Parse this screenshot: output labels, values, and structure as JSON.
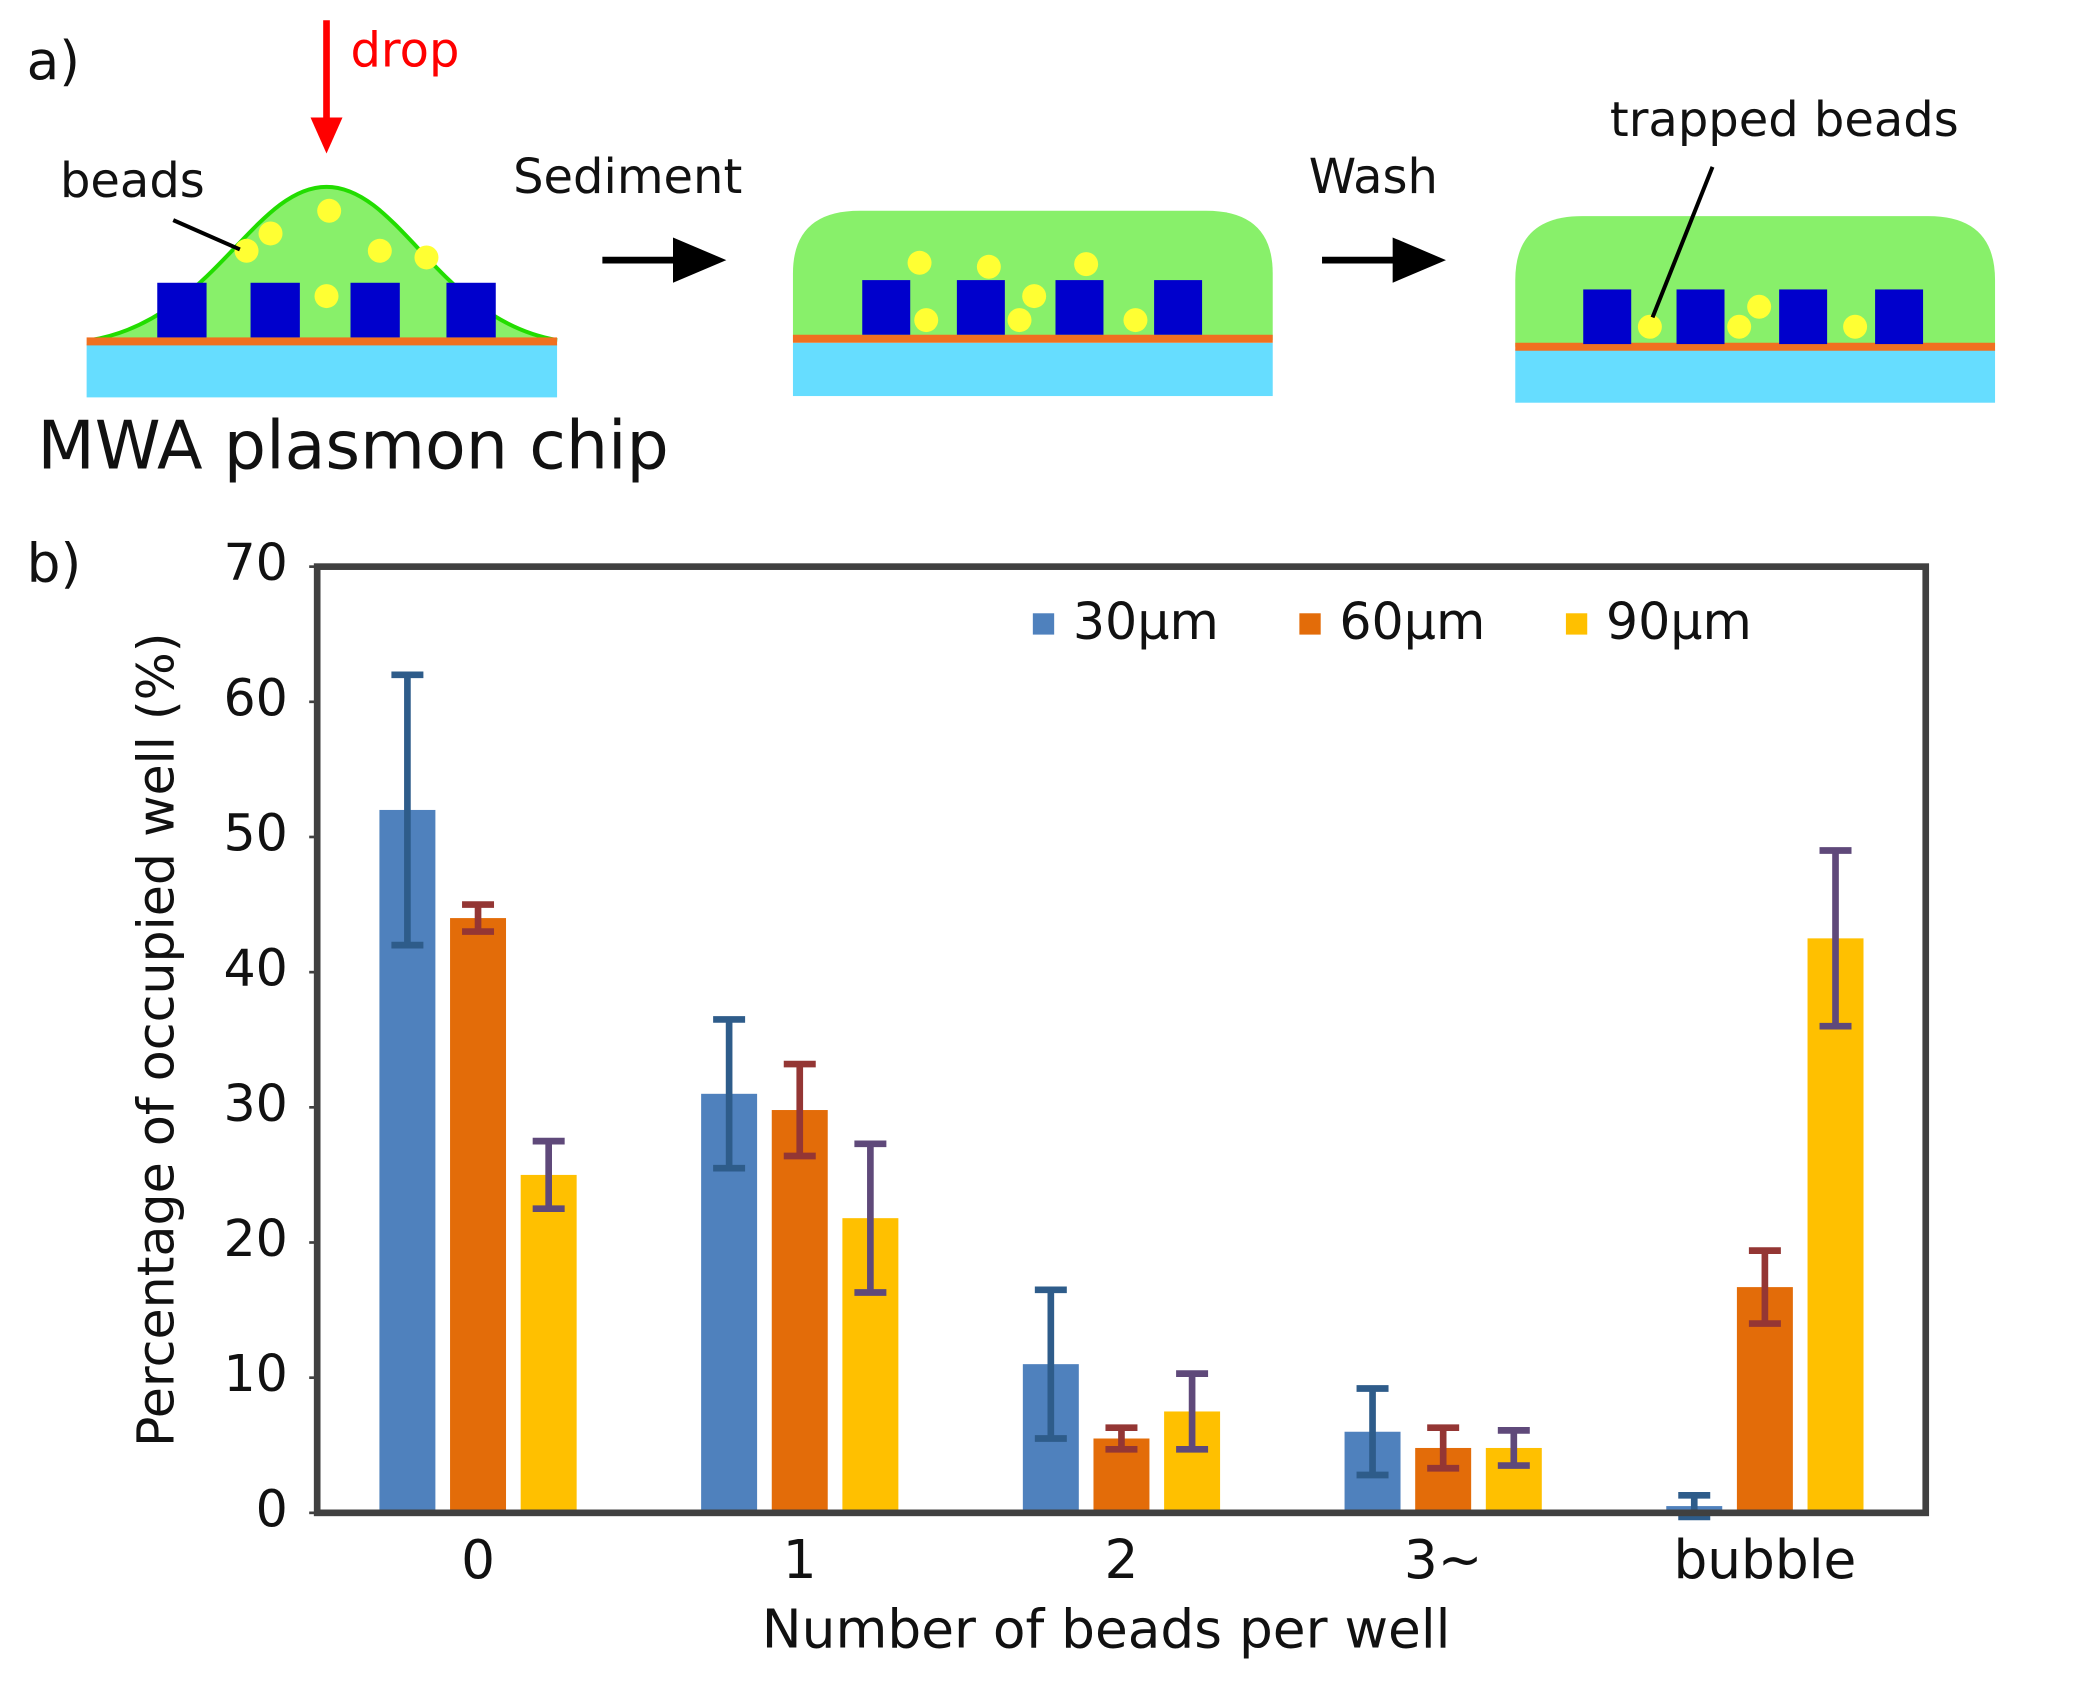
{
  "diagram": {
    "panel_label": "a)",
    "drop_label": "drop",
    "beads_label": "beads",
    "step1_label": "Sediment",
    "step2_label": "Wash",
    "trapped_label": "trapped beads",
    "chip_label": "MWA plasmon chip"
  },
  "chart_data": {
    "type": "bar",
    "panel_label": "b)",
    "x_label": "Number of beads per well",
    "y_label": "Percentage of occupied well (%)",
    "categories": [
      "0",
      "1",
      "2",
      "3~",
      "bubble"
    ],
    "series": [
      {
        "name": "30μm",
        "color": "#4f81bd",
        "error_color": "#2e5c8a",
        "values": [
          52,
          31,
          11,
          6,
          0.5
        ],
        "errors": [
          10,
          5.5,
          5.5,
          3.2,
          0.8
        ]
      },
      {
        "name": "60μm",
        "color": "#e36c09",
        "error_color": "#943634",
        "values": [
          44,
          29.8,
          5.5,
          4.8,
          16.7
        ],
        "errors": [
          1,
          3.4,
          0.8,
          1.5,
          2.7
        ]
      },
      {
        "name": "90μm",
        "color": "#ffc000",
        "error_color": "#5f497a",
        "values": [
          25,
          21.8,
          7.5,
          4.8,
          42.5
        ],
        "errors": [
          2.5,
          5.5,
          2.8,
          1.3,
          6.5
        ]
      }
    ],
    "ylim": [
      0,
      70
    ],
    "yticks": [
      0,
      10,
      20,
      30,
      40,
      50,
      60,
      70
    ],
    "grid": false,
    "legend": "top-right"
  }
}
